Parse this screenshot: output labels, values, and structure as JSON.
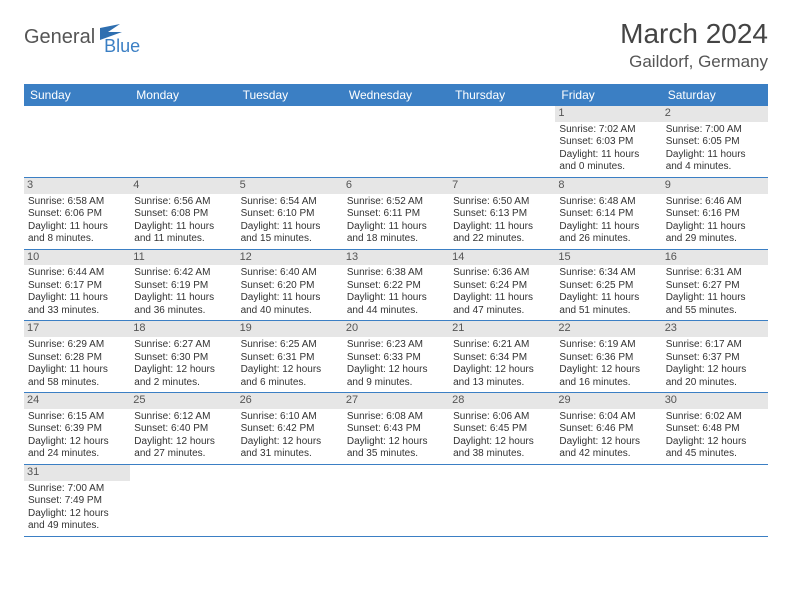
{
  "logo": {
    "main": "General",
    "sub": "Blue"
  },
  "title": "March 2024",
  "location": "Gaildorf, Germany",
  "colors": {
    "header_bg": "#3b7fc4",
    "header_fg": "#ffffff",
    "daynum_bg": "#e6e6e6",
    "row_border": "#3b7fc4",
    "text": "#333333"
  },
  "day_headers": [
    "Sunday",
    "Monday",
    "Tuesday",
    "Wednesday",
    "Thursday",
    "Friday",
    "Saturday"
  ],
  "weeks": [
    [
      null,
      null,
      null,
      null,
      null,
      {
        "n": "1",
        "sr": "Sunrise: 7:02 AM",
        "ss": "Sunset: 6:03 PM",
        "d1": "Daylight: 11 hours",
        "d2": "and 0 minutes."
      },
      {
        "n": "2",
        "sr": "Sunrise: 7:00 AM",
        "ss": "Sunset: 6:05 PM",
        "d1": "Daylight: 11 hours",
        "d2": "and 4 minutes."
      }
    ],
    [
      {
        "n": "3",
        "sr": "Sunrise: 6:58 AM",
        "ss": "Sunset: 6:06 PM",
        "d1": "Daylight: 11 hours",
        "d2": "and 8 minutes."
      },
      {
        "n": "4",
        "sr": "Sunrise: 6:56 AM",
        "ss": "Sunset: 6:08 PM",
        "d1": "Daylight: 11 hours",
        "d2": "and 11 minutes."
      },
      {
        "n": "5",
        "sr": "Sunrise: 6:54 AM",
        "ss": "Sunset: 6:10 PM",
        "d1": "Daylight: 11 hours",
        "d2": "and 15 minutes."
      },
      {
        "n": "6",
        "sr": "Sunrise: 6:52 AM",
        "ss": "Sunset: 6:11 PM",
        "d1": "Daylight: 11 hours",
        "d2": "and 18 minutes."
      },
      {
        "n": "7",
        "sr": "Sunrise: 6:50 AM",
        "ss": "Sunset: 6:13 PM",
        "d1": "Daylight: 11 hours",
        "d2": "and 22 minutes."
      },
      {
        "n": "8",
        "sr": "Sunrise: 6:48 AM",
        "ss": "Sunset: 6:14 PM",
        "d1": "Daylight: 11 hours",
        "d2": "and 26 minutes."
      },
      {
        "n": "9",
        "sr": "Sunrise: 6:46 AM",
        "ss": "Sunset: 6:16 PM",
        "d1": "Daylight: 11 hours",
        "d2": "and 29 minutes."
      }
    ],
    [
      {
        "n": "10",
        "sr": "Sunrise: 6:44 AM",
        "ss": "Sunset: 6:17 PM",
        "d1": "Daylight: 11 hours",
        "d2": "and 33 minutes."
      },
      {
        "n": "11",
        "sr": "Sunrise: 6:42 AM",
        "ss": "Sunset: 6:19 PM",
        "d1": "Daylight: 11 hours",
        "d2": "and 36 minutes."
      },
      {
        "n": "12",
        "sr": "Sunrise: 6:40 AM",
        "ss": "Sunset: 6:20 PM",
        "d1": "Daylight: 11 hours",
        "d2": "and 40 minutes."
      },
      {
        "n": "13",
        "sr": "Sunrise: 6:38 AM",
        "ss": "Sunset: 6:22 PM",
        "d1": "Daylight: 11 hours",
        "d2": "and 44 minutes."
      },
      {
        "n": "14",
        "sr": "Sunrise: 6:36 AM",
        "ss": "Sunset: 6:24 PM",
        "d1": "Daylight: 11 hours",
        "d2": "and 47 minutes."
      },
      {
        "n": "15",
        "sr": "Sunrise: 6:34 AM",
        "ss": "Sunset: 6:25 PM",
        "d1": "Daylight: 11 hours",
        "d2": "and 51 minutes."
      },
      {
        "n": "16",
        "sr": "Sunrise: 6:31 AM",
        "ss": "Sunset: 6:27 PM",
        "d1": "Daylight: 11 hours",
        "d2": "and 55 minutes."
      }
    ],
    [
      {
        "n": "17",
        "sr": "Sunrise: 6:29 AM",
        "ss": "Sunset: 6:28 PM",
        "d1": "Daylight: 11 hours",
        "d2": "and 58 minutes."
      },
      {
        "n": "18",
        "sr": "Sunrise: 6:27 AM",
        "ss": "Sunset: 6:30 PM",
        "d1": "Daylight: 12 hours",
        "d2": "and 2 minutes."
      },
      {
        "n": "19",
        "sr": "Sunrise: 6:25 AM",
        "ss": "Sunset: 6:31 PM",
        "d1": "Daylight: 12 hours",
        "d2": "and 6 minutes."
      },
      {
        "n": "20",
        "sr": "Sunrise: 6:23 AM",
        "ss": "Sunset: 6:33 PM",
        "d1": "Daylight: 12 hours",
        "d2": "and 9 minutes."
      },
      {
        "n": "21",
        "sr": "Sunrise: 6:21 AM",
        "ss": "Sunset: 6:34 PM",
        "d1": "Daylight: 12 hours",
        "d2": "and 13 minutes."
      },
      {
        "n": "22",
        "sr": "Sunrise: 6:19 AM",
        "ss": "Sunset: 6:36 PM",
        "d1": "Daylight: 12 hours",
        "d2": "and 16 minutes."
      },
      {
        "n": "23",
        "sr": "Sunrise: 6:17 AM",
        "ss": "Sunset: 6:37 PM",
        "d1": "Daylight: 12 hours",
        "d2": "and 20 minutes."
      }
    ],
    [
      {
        "n": "24",
        "sr": "Sunrise: 6:15 AM",
        "ss": "Sunset: 6:39 PM",
        "d1": "Daylight: 12 hours",
        "d2": "and 24 minutes."
      },
      {
        "n": "25",
        "sr": "Sunrise: 6:12 AM",
        "ss": "Sunset: 6:40 PM",
        "d1": "Daylight: 12 hours",
        "d2": "and 27 minutes."
      },
      {
        "n": "26",
        "sr": "Sunrise: 6:10 AM",
        "ss": "Sunset: 6:42 PM",
        "d1": "Daylight: 12 hours",
        "d2": "and 31 minutes."
      },
      {
        "n": "27",
        "sr": "Sunrise: 6:08 AM",
        "ss": "Sunset: 6:43 PM",
        "d1": "Daylight: 12 hours",
        "d2": "and 35 minutes."
      },
      {
        "n": "28",
        "sr": "Sunrise: 6:06 AM",
        "ss": "Sunset: 6:45 PM",
        "d1": "Daylight: 12 hours",
        "d2": "and 38 minutes."
      },
      {
        "n": "29",
        "sr": "Sunrise: 6:04 AM",
        "ss": "Sunset: 6:46 PM",
        "d1": "Daylight: 12 hours",
        "d2": "and 42 minutes."
      },
      {
        "n": "30",
        "sr": "Sunrise: 6:02 AM",
        "ss": "Sunset: 6:48 PM",
        "d1": "Daylight: 12 hours",
        "d2": "and 45 minutes."
      }
    ],
    [
      {
        "n": "31",
        "sr": "Sunrise: 7:00 AM",
        "ss": "Sunset: 7:49 PM",
        "d1": "Daylight: 12 hours",
        "d2": "and 49 minutes."
      },
      null,
      null,
      null,
      null,
      null,
      null
    ]
  ]
}
